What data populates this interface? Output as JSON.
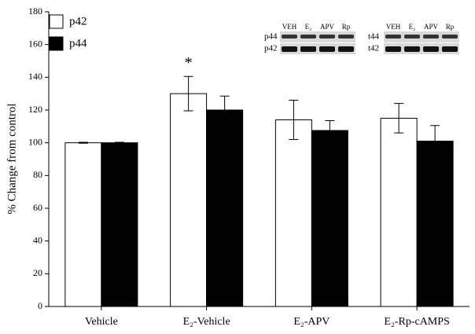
{
  "chart_data": {
    "type": "bar",
    "y_label": "% Change from control",
    "categories": [
      "Vehicle",
      "E₂-Vehicle",
      "E₂-APV",
      "E₂-Rp-cAMPS"
    ],
    "series": [
      {
        "name": "p42",
        "color": "#ffffff",
        "values": [
          100,
          130,
          114,
          115
        ],
        "errors": [
          0.3,
          10.5,
          12,
          9
        ]
      },
      {
        "name": "p44",
        "color": "#000000",
        "values": [
          100,
          120,
          107.5,
          101
        ],
        "errors": [
          0.3,
          8.5,
          6,
          9.5
        ]
      }
    ],
    "ylim": [
      0,
      180
    ],
    "yticks": [
      0,
      20,
      40,
      60,
      80,
      100,
      120,
      140,
      160,
      180
    ],
    "legend": "upper left",
    "annotations": [
      {
        "text": "*",
        "category": 1,
        "series": 0
      }
    ],
    "insets": [
      {
        "lanes": [
          "VEH",
          "E₂",
          "APV",
          "Rp"
        ],
        "rows": [
          "p44",
          "p42"
        ]
      },
      {
        "lanes": [
          "VEH",
          "E₂",
          "APV",
          "Rp"
        ],
        "rows": [
          "t44",
          "t42"
        ]
      }
    ]
  }
}
